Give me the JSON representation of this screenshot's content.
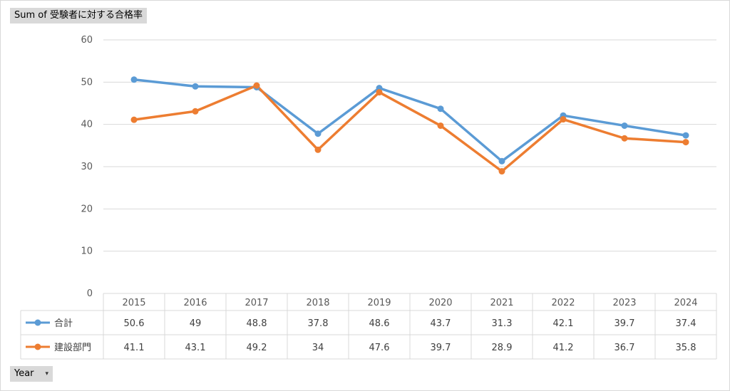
{
  "header": {
    "title": "Sum of 受験者に対する合格率"
  },
  "footer": {
    "field_label": "Year",
    "dropdown_glyph": "▾"
  },
  "chart_data": {
    "type": "line",
    "categories": [
      "2015",
      "2016",
      "2017",
      "2018",
      "2019",
      "2020",
      "2021",
      "2022",
      "2023",
      "2024"
    ],
    "series": [
      {
        "name": "合計",
        "color": "#5B9BD5",
        "values": [
          50.6,
          49,
          48.8,
          37.8,
          48.6,
          43.7,
          31.3,
          42.1,
          39.7,
          37.4
        ]
      },
      {
        "name": "建設部門",
        "color": "#ED7D31",
        "values": [
          41.1,
          43.1,
          49.2,
          34,
          47.6,
          39.7,
          28.9,
          41.2,
          36.7,
          35.8
        ]
      }
    ],
    "y_ticks": [
      0,
      10,
      20,
      30,
      40,
      50,
      60
    ],
    "ylim": [
      0,
      60
    ],
    "grid": true,
    "legend": "data-table"
  }
}
